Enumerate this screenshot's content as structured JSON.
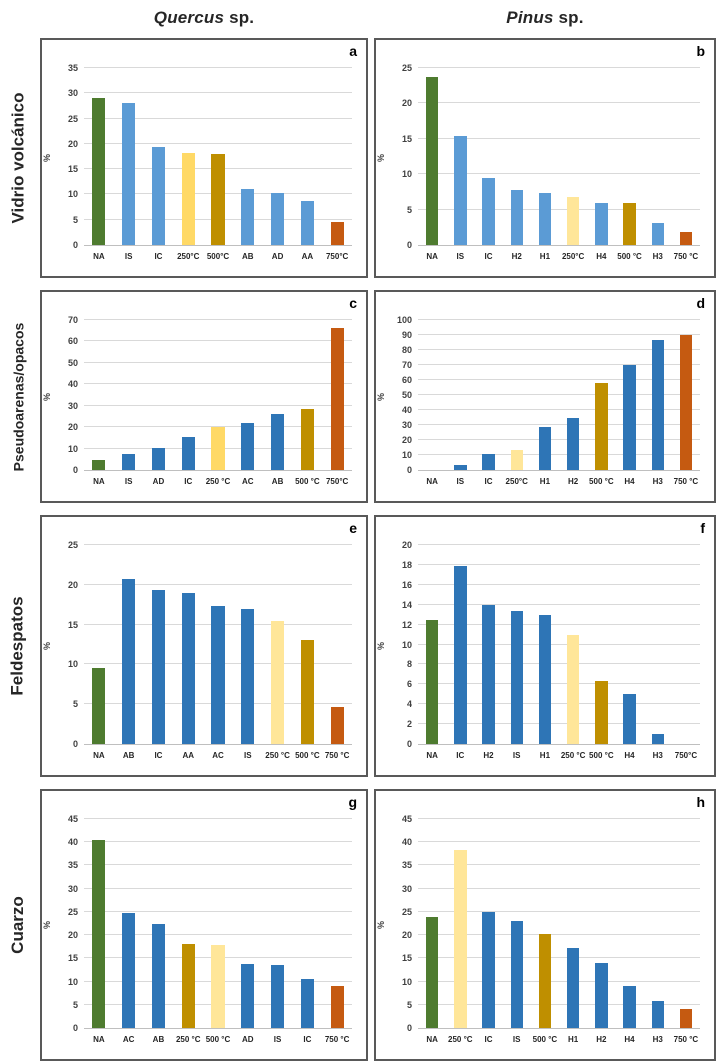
{
  "headers": {
    "col1_genus": "Quercus",
    "col1_rest": " sp.",
    "col2_genus": "Pinus",
    "col2_rest": " sp."
  },
  "rows": [
    {
      "label": "Vidrio volcánico"
    },
    {
      "label": "Pseudoarenas/opacos"
    },
    {
      "label": "Feldespatos"
    },
    {
      "label": "Cuarzo"
    }
  ],
  "palette": {
    "green": "#4e7b2f",
    "light_blue": "#5b9bd5",
    "blue": "#2e75b6",
    "pale_yellow": "#ffe699",
    "yellow": "#ffd966",
    "gold": "#bf8f00",
    "orange": "#c55a11"
  },
  "chart_data": [
    {
      "type": "bar",
      "panel_label": "a",
      "row": "Vidrio volcánico",
      "column": "Quercus sp.",
      "ylabel": "%",
      "ylim": [
        0,
        35
      ],
      "ytick_step": 5,
      "grid": true,
      "legend": "none",
      "categories": [
        "NA",
        "IS",
        "IC",
        "250°C",
        "500°C",
        "AB",
        "AD",
        "AA",
        "750°C"
      ],
      "values": [
        29,
        28,
        19.3,
        18.1,
        18,
        11,
        10.3,
        8.7,
        4.5
      ],
      "bar_colors": [
        "#4e7b2f",
        "#5b9bd5",
        "#5b9bd5",
        "#ffd966",
        "#bf8f00",
        "#5b9bd5",
        "#5b9bd5",
        "#5b9bd5",
        "#c55a11"
      ]
    },
    {
      "type": "bar",
      "panel_label": "b",
      "row": "Vidrio volcánico",
      "column": "Pinus sp.",
      "ylabel": "%",
      "ylim": [
        0,
        25
      ],
      "ytick_step": 5,
      "grid": true,
      "legend": "none",
      "categories": [
        "NA",
        "IS",
        "IC",
        "H2",
        "H1",
        "250°C",
        "H4",
        "500 °C",
        "H3",
        "750 °C"
      ],
      "values": [
        23.7,
        15.4,
        9.5,
        7.7,
        7.3,
        6.8,
        6,
        6,
        3.1,
        1.9
      ],
      "bar_colors": [
        "#4e7b2f",
        "#5b9bd5",
        "#5b9bd5",
        "#5b9bd5",
        "#5b9bd5",
        "#ffe699",
        "#5b9bd5",
        "#bf8f00",
        "#5b9bd5",
        "#c55a11"
      ]
    },
    {
      "type": "bar",
      "panel_label": "c",
      "row": "Pseudoarenas/opacos",
      "column": "Quercus sp.",
      "ylabel": "%",
      "ylim": [
        0,
        70
      ],
      "ytick_step": 10,
      "grid": true,
      "legend": "none",
      "categories": [
        "NA",
        "IS",
        "AD",
        "IC",
        "250 °C",
        "AC",
        "AB",
        "500 °C",
        "750°C"
      ],
      "values": [
        4.8,
        7.6,
        10.2,
        15.5,
        20,
        22,
        26.2,
        28.4,
        66.5
      ],
      "bar_colors": [
        "#4e7b2f",
        "#2e75b6",
        "#2e75b6",
        "#2e75b6",
        "#ffd966",
        "#2e75b6",
        "#2e75b6",
        "#bf8f00",
        "#c55a11"
      ]
    },
    {
      "type": "bar",
      "panel_label": "d",
      "row": "Pseudoarenas/opacos",
      "column": "Pinus sp.",
      "ylabel": "%",
      "ylim": [
        0,
        100
      ],
      "ytick_step": 10,
      "grid": true,
      "legend": "none",
      "categories": [
        "NA",
        "IS",
        "IC",
        "250°C",
        "H1",
        "H2",
        "500 °C",
        "H4",
        "H3",
        "750 °C"
      ],
      "values": [
        0,
        3.5,
        10.5,
        13.5,
        29,
        34.5,
        58,
        70,
        86.5,
        90
      ],
      "bar_colors": [
        "#4e7b2f",
        "#2e75b6",
        "#2e75b6",
        "#ffe699",
        "#2e75b6",
        "#2e75b6",
        "#bf8f00",
        "#2e75b6",
        "#2e75b6",
        "#c55a11"
      ]
    },
    {
      "type": "bar",
      "panel_label": "e",
      "row": "Feldespatos",
      "column": "Quercus sp.",
      "ylabel": "%",
      "ylim": [
        0,
        25
      ],
      "ytick_step": 5,
      "grid": true,
      "legend": "none",
      "categories": [
        "NA",
        "AB",
        "IC",
        "AA",
        "AC",
        "IS",
        "250 °C",
        "500 °C",
        "750 °C"
      ],
      "values": [
        9.6,
        20.7,
        19.4,
        19,
        17.4,
        17,
        15.5,
        13.1,
        4.6
      ],
      "bar_colors": [
        "#4e7b2f",
        "#2e75b6",
        "#2e75b6",
        "#2e75b6",
        "#2e75b6",
        "#2e75b6",
        "#ffe699",
        "#bf8f00",
        "#c55a11"
      ]
    },
    {
      "type": "bar",
      "panel_label": "f",
      "row": "Feldespatos",
      "column": "Pinus sp.",
      "ylabel": "%",
      "ylim": [
        0,
        20
      ],
      "ytick_step": 2,
      "grid": true,
      "legend": "none",
      "categories": [
        "NA",
        "IC",
        "H2",
        "IS",
        "H1",
        "250 °C",
        "500 °C",
        "H4",
        "H3",
        "750°C"
      ],
      "values": [
        12.5,
        17.9,
        14,
        13.4,
        13,
        11,
        6.3,
        5,
        1,
        0
      ],
      "bar_colors": [
        "#4e7b2f",
        "#2e75b6",
        "#2e75b6",
        "#2e75b6",
        "#2e75b6",
        "#ffe699",
        "#bf8f00",
        "#2e75b6",
        "#2e75b6",
        "#c55a11"
      ]
    },
    {
      "type": "bar",
      "panel_label": "g",
      "row": "Cuarzo",
      "column": "Quercus sp.",
      "ylabel": "%",
      "ylim": [
        0,
        45
      ],
      "ytick_step": 5,
      "grid": true,
      "legend": "none",
      "categories": [
        "NA",
        "AC",
        "AB",
        "250 °C",
        "500 °C",
        "AD",
        "IS",
        "IC",
        "750 °C"
      ],
      "values": [
        40.4,
        24.7,
        22.5,
        18.1,
        17.8,
        13.8,
        13.5,
        10.6,
        9
      ],
      "bar_colors": [
        "#4e7b2f",
        "#2e75b6",
        "#2e75b6",
        "#bf8f00",
        "#ffe699",
        "#2e75b6",
        "#2e75b6",
        "#2e75b6",
        "#c55a11"
      ]
    },
    {
      "type": "bar",
      "panel_label": "h",
      "row": "Cuarzo",
      "column": "Pinus sp.",
      "ylabel": "%",
      "ylim": [
        0,
        45
      ],
      "ytick_step": 5,
      "grid": true,
      "legend": "none",
      "categories": [
        "NA",
        "250 °C",
        "IC",
        "IS",
        "500 °C",
        "H1",
        "H2",
        "H4",
        "H3",
        "750 °C"
      ],
      "values": [
        23.8,
        38.3,
        25,
        23,
        20.3,
        17.3,
        14.1,
        9.1,
        5.9,
        4
      ],
      "bar_colors": [
        "#4e7b2f",
        "#ffe699",
        "#2e75b6",
        "#2e75b6",
        "#bf8f00",
        "#2e75b6",
        "#2e75b6",
        "#2e75b6",
        "#2e75b6",
        "#c55a11"
      ]
    }
  ]
}
